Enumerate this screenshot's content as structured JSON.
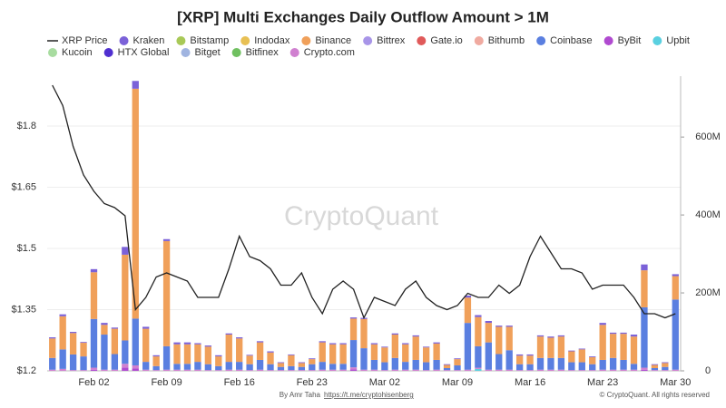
{
  "chart_data": {
    "type": "bar",
    "title": "[XRP] Multi Exchanges Daily Outflow Amount > 1M",
    "watermark": "CryptoQuant",
    "credit": "By Amr Taha",
    "link": "https://t.me/cryptohisenberg",
    "copyright": "© CryptoQuant. All rights reserved",
    "categories": [
      null,
      null,
      null,
      null,
      "Feb 02",
      null,
      null,
      null,
      null,
      null,
      null,
      "Feb 09",
      null,
      null,
      null,
      null,
      null,
      null,
      "Feb 16",
      null,
      null,
      null,
      null,
      null,
      null,
      "Feb 23",
      null,
      null,
      null,
      null,
      null,
      null,
      "Mar 02",
      null,
      null,
      null,
      null,
      null,
      null,
      "Mar 09",
      null,
      null,
      null,
      null,
      null,
      null,
      "Mar 16",
      null,
      null,
      null,
      null,
      null,
      null,
      "Mar 23",
      null,
      null,
      null,
      null,
      null,
      null,
      "Mar 30"
    ],
    "ylim": [
      1.2,
      1.9
    ],
    "yticks": [
      {
        "value": 1.2,
        "label": "$1.2"
      },
      {
        "value": 1.35,
        "label": "$1.35"
      },
      {
        "value": 1.5,
        "label": "$1.5"
      },
      {
        "value": 1.65,
        "label": "$1.65"
      },
      {
        "value": 1.8,
        "label": "$1.8"
      }
    ],
    "y2lim": [
      0,
      733
    ],
    "y2ticks": [
      0,
      {
        "value": 200,
        "label": "200M"
      },
      {
        "value": 400,
        "label": "400M"
      },
      {
        "value": 600,
        "label": "600M"
      }
    ],
    "grid": true,
    "line_series": {
      "name": "XRP Price",
      "color": "#222222",
      "values": [
        1.9,
        1.85,
        1.75,
        1.68,
        1.64,
        1.61,
        1.6,
        1.58,
        1.35,
        1.38,
        1.43,
        1.44,
        1.43,
        1.42,
        1.38,
        1.38,
        1.38,
        1.45,
        1.53,
        1.48,
        1.47,
        1.45,
        1.41,
        1.41,
        1.44,
        1.38,
        1.34,
        1.4,
        1.42,
        1.4,
        1.33,
        1.38,
        1.37,
        1.36,
        1.4,
        1.42,
        1.38,
        1.36,
        1.35,
        1.36,
        1.39,
        1.38,
        1.38,
        1.41,
        1.39,
        1.41,
        1.48,
        1.53,
        1.49,
        1.45,
        1.45,
        1.44,
        1.4,
        1.41,
        1.41,
        1.41,
        1.38,
        1.34,
        1.34,
        1.33,
        1.34
      ]
    },
    "series": [
      {
        "name": "Kraken",
        "color": "#7b61d8",
        "axis": "y2",
        "values": [
          3,
          5,
          3,
          2,
          8,
          5,
          3,
          20,
          20,
          5,
          3,
          5,
          5,
          5,
          3,
          3,
          3,
          3,
          3,
          2,
          3,
          3,
          2,
          2,
          2,
          2,
          3,
          3,
          3,
          3,
          3,
          3,
          2,
          3,
          3,
          3,
          2,
          3,
          2,
          2,
          5,
          5,
          5,
          3,
          3,
          3,
          3,
          3,
          3,
          3,
          2,
          2,
          2,
          5,
          3,
          3,
          5,
          15,
          2,
          2,
          5
        ]
      },
      {
        "name": "Bitstamp",
        "color": "#a8c957",
        "axis": "y2",
        "values": [
          0,
          0,
          0,
          0,
          0,
          0,
          0,
          0,
          0,
          0,
          0,
          0,
          0,
          0,
          0,
          0,
          0,
          0,
          0,
          0,
          0,
          0,
          0,
          0,
          0,
          0,
          0,
          0,
          0,
          0,
          0,
          0,
          0,
          0,
          0,
          0,
          0,
          0,
          0,
          0,
          0,
          0,
          0,
          0,
          0,
          0,
          0,
          0,
          0,
          0,
          0,
          0,
          0,
          0,
          0,
          0,
          0,
          0,
          0,
          0,
          0
        ]
      },
      {
        "name": "Indodax",
        "color": "#e8c054",
        "axis": "y2",
        "values": [
          0,
          0,
          0,
          0,
          0,
          0,
          0,
          0,
          0,
          0,
          0,
          0,
          0,
          0,
          0,
          0,
          0,
          0,
          0,
          0,
          0,
          0,
          0,
          0,
          0,
          0,
          0,
          0,
          0,
          0,
          0,
          0,
          0,
          0,
          0,
          0,
          0,
          0,
          0,
          0,
          0,
          0,
          0,
          0,
          0,
          0,
          0,
          0,
          0,
          0,
          0,
          0,
          0,
          0,
          0,
          0,
          0,
          0,
          0,
          0,
          0
        ]
      },
      {
        "name": "Binance",
        "color": "#f0a05a",
        "axis": "y2",
        "values": [
          50,
          85,
          55,
          35,
          120,
          25,
          65,
          220,
          590,
          85,
          25,
          270,
          50,
          50,
          45,
          45,
          25,
          70,
          60,
          22,
          45,
          30,
          10,
          28,
          10,
          13,
          50,
          50,
          50,
          55,
          75,
          40,
          38,
          60,
          45,
          60,
          38,
          42,
          8,
          16,
          65,
          75,
          50,
          70,
          60,
          22,
          22,
          55,
          52,
          55,
          28,
          33,
          18,
          90,
          62,
          67,
          70,
          95,
          8,
          10,
          60
        ]
      },
      {
        "name": "Bittrex",
        "color": "#a895e8",
        "axis": "y2",
        "values": [
          0,
          0,
          0,
          0,
          0,
          0,
          0,
          0,
          0,
          0,
          0,
          0,
          0,
          0,
          0,
          0,
          0,
          0,
          0,
          0,
          0,
          0,
          0,
          0,
          0,
          0,
          0,
          0,
          0,
          0,
          0,
          0,
          0,
          0,
          0,
          0,
          0,
          0,
          0,
          0,
          0,
          0,
          0,
          0,
          0,
          0,
          0,
          0,
          0,
          0,
          0,
          0,
          0,
          0,
          0,
          0,
          0,
          0,
          0,
          0,
          0
        ]
      },
      {
        "name": "Gate.io",
        "color": "#e05a5a",
        "axis": "y2",
        "values": [
          0,
          0,
          0,
          0,
          0,
          0,
          0,
          0,
          0,
          0,
          0,
          0,
          0,
          0,
          0,
          0,
          0,
          0,
          0,
          0,
          0,
          0,
          0,
          0,
          0,
          0,
          0,
          0,
          0,
          0,
          0,
          0,
          0,
          0,
          0,
          0,
          0,
          0,
          0,
          0,
          0,
          0,
          0,
          0,
          0,
          0,
          0,
          0,
          0,
          0,
          0,
          0,
          0,
          0,
          0,
          0,
          0,
          0,
          0,
          0,
          0
        ]
      },
      {
        "name": "Bithumb",
        "color": "#f0aaa0",
        "axis": "y2",
        "values": [
          0,
          0,
          0,
          0,
          0,
          0,
          0,
          0,
          0,
          0,
          0,
          0,
          0,
          0,
          0,
          0,
          0,
          0,
          0,
          0,
          0,
          0,
          0,
          0,
          0,
          0,
          0,
          0,
          0,
          0,
          0,
          0,
          0,
          0,
          0,
          0,
          0,
          0,
          0,
          0,
          0,
          0,
          0,
          0,
          0,
          0,
          0,
          0,
          0,
          0,
          0,
          0,
          0,
          0,
          0,
          0,
          0,
          0,
          0,
          0,
          0
        ]
      },
      {
        "name": "Coinbase",
        "color": "#5a7fe0",
        "axis": "y2",
        "values": [
          30,
          50,
          40,
          35,
          125,
          90,
          40,
          60,
          120,
          20,
          10,
          60,
          15,
          15,
          20,
          15,
          10,
          20,
          20,
          15,
          25,
          15,
          8,
          10,
          8,
          15,
          20,
          15,
          15,
          70,
          55,
          25,
          20,
          30,
          20,
          25,
          20,
          25,
          5,
          12,
          120,
          55,
          70,
          40,
          50,
          15,
          15,
          30,
          30,
          30,
          20,
          20,
          15,
          25,
          30,
          25,
          15,
          155,
          5,
          8,
          180
        ]
      },
      {
        "name": "ByBit",
        "color": "#b04ad0",
        "axis": "y2",
        "values": [
          0,
          0,
          0,
          0,
          3,
          0,
          0,
          8,
          6,
          0,
          0,
          0,
          0,
          0,
          0,
          0,
          0,
          0,
          0,
          0,
          0,
          0,
          0,
          0,
          0,
          0,
          0,
          0,
          0,
          4,
          0,
          0,
          0,
          0,
          0,
          0,
          0,
          0,
          0,
          0,
          0,
          0,
          0,
          0,
          0,
          0,
          0,
          0,
          0,
          0,
          0,
          0,
          0,
          0,
          0,
          0,
          0,
          3,
          0,
          0,
          0
        ]
      },
      {
        "name": "Upbit",
        "color": "#5ad0e0",
        "axis": "y2",
        "values": [
          0,
          0,
          0,
          0,
          0,
          0,
          0,
          0,
          0,
          0,
          0,
          0,
          0,
          0,
          0,
          0,
          0,
          0,
          0,
          0,
          0,
          0,
          0,
          0,
          0,
          0,
          0,
          0,
          0,
          0,
          0,
          0,
          0,
          0,
          0,
          0,
          0,
          0,
          0,
          0,
          0,
          5,
          0,
          0,
          0,
          0,
          0,
          0,
          0,
          0,
          0,
          0,
          0,
          0,
          0,
          0,
          0,
          0,
          0,
          0,
          0
        ]
      },
      {
        "name": "Kucoin",
        "color": "#a8dca0",
        "axis": "y2",
        "values": [
          0,
          0,
          0,
          0,
          0,
          0,
          0,
          0,
          0,
          0,
          0,
          0,
          0,
          0,
          0,
          0,
          0,
          0,
          0,
          0,
          0,
          0,
          0,
          0,
          0,
          0,
          0,
          0,
          0,
          0,
          0,
          0,
          0,
          0,
          0,
          0,
          0,
          0,
          0,
          0,
          0,
          0,
          0,
          0,
          0,
          0,
          0,
          0,
          0,
          0,
          0,
          0,
          0,
          0,
          0,
          0,
          0,
          0,
          0,
          0,
          0
        ]
      },
      {
        "name": "HTX Global",
        "color": "#5030d0",
        "axis": "y2",
        "values": [
          0,
          0,
          0,
          0,
          0,
          0,
          0,
          0,
          0,
          0,
          0,
          0,
          0,
          0,
          0,
          0,
          0,
          0,
          0,
          0,
          0,
          0,
          0,
          0,
          0,
          0,
          0,
          0,
          0,
          0,
          0,
          0,
          0,
          0,
          0,
          0,
          0,
          0,
          0,
          0,
          0,
          0,
          0,
          0,
          0,
          0,
          0,
          0,
          0,
          0,
          0,
          0,
          0,
          0,
          0,
          0,
          0,
          0,
          0,
          0,
          0
        ]
      },
      {
        "name": "Bitget",
        "color": "#a0b4e0",
        "axis": "y2",
        "values": [
          0,
          0,
          0,
          0,
          0,
          0,
          0,
          0,
          0,
          0,
          0,
          0,
          0,
          0,
          0,
          0,
          0,
          0,
          0,
          0,
          0,
          0,
          0,
          0,
          0,
          0,
          0,
          0,
          0,
          0,
          0,
          0,
          0,
          0,
          0,
          0,
          0,
          0,
          0,
          0,
          0,
          0,
          0,
          0,
          0,
          0,
          0,
          0,
          0,
          0,
          0,
          0,
          0,
          0,
          0,
          0,
          0,
          0,
          0,
          0,
          0
        ]
      },
      {
        "name": "Bitfinex",
        "color": "#70c060",
        "axis": "y2",
        "values": [
          0,
          0,
          0,
          0,
          0,
          0,
          0,
          0,
          0,
          0,
          0,
          0,
          0,
          0,
          0,
          0,
          0,
          0,
          0,
          0,
          0,
          0,
          0,
          0,
          0,
          0,
          0,
          0,
          0,
          0,
          0,
          0,
          0,
          0,
          0,
          0,
          0,
          0,
          0,
          0,
          0,
          0,
          0,
          0,
          0,
          0,
          0,
          0,
          0,
          0,
          0,
          0,
          0,
          0,
          0,
          0,
          0,
          0,
          0,
          0,
          0
        ]
      },
      {
        "name": "Crypto.com",
        "color": "#d080d0",
        "axis": "y2",
        "values": [
          3,
          5,
          2,
          2,
          5,
          3,
          3,
          10,
          8,
          3,
          2,
          3,
          3,
          3,
          3,
          2,
          2,
          3,
          3,
          2,
          3,
          2,
          2,
          2,
          2,
          2,
          3,
          3,
          3,
          5,
          3,
          3,
          2,
          3,
          3,
          3,
          2,
          3,
          2,
          2,
          3,
          3,
          3,
          3,
          3,
          2,
          2,
          3,
          3,
          3,
          2,
          2,
          2,
          3,
          3,
          3,
          3,
          5,
          2,
          2,
          3
        ]
      }
    ]
  }
}
